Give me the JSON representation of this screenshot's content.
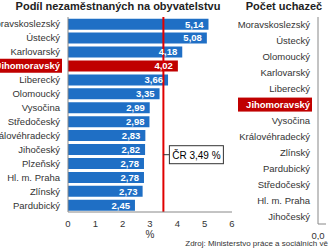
{
  "chart_data": [
    {
      "type": "bar",
      "title": "Podíl nezaměstnaných na obyvatelstvu",
      "orientation": "horizontal",
      "categories": [
        "Moravskoslezský",
        "Ústecký",
        "Karlovarský",
        "Jihomoravský",
        "Liberecký",
        "Olomoucký",
        "Vysočina",
        "Středočeský",
        "Královéhradecký",
        "Jihočeský",
        "Plzeňský",
        "Hl. m. Praha",
        "Zlínský",
        "Pardubický"
      ],
      "values": [
        5.14,
        5.08,
        4.18,
        4.02,
        3.66,
        3.35,
        2.99,
        2.98,
        2.83,
        2.82,
        2.78,
        2.78,
        2.73,
        2.45
      ],
      "value_labels": [
        "5,14",
        "5,08",
        "4,18",
        "4,02",
        "3,66",
        "3,35",
        "2,99",
        "2,98",
        "2,83",
        "2,82",
        "2,78",
        "2,78",
        "2,73",
        "2,45"
      ],
      "colors": [
        "#1f6fc5",
        "#1f6fc5",
        "#1f6fc5",
        "#c00000",
        "#1f6fc5",
        "#1f6fc5",
        "#1f6fc5",
        "#1f6fc5",
        "#1f6fc5",
        "#1f6fc5",
        "#1f6fc5",
        "#1f6fc5",
        "#1f6fc5",
        "#1f6fc5"
      ],
      "data_labels": true,
      "xlim": [
        0,
        6
      ],
      "xticks": [
        0,
        1,
        2,
        3,
        4,
        5,
        6
      ],
      "x_label": "%",
      "reference_line": {
        "value": 3.49,
        "label": "ČR 3,49 %",
        "color": "#e00000"
      }
    },
    {
      "type": "bar",
      "title": "Počet uchazeč",
      "orientation": "horizontal",
      "categories": [
        "Moravskoslezský",
        "Ústecký",
        "Olomoucký",
        "Karlovarský",
        "Liberecký",
        "Jihomoravský",
        "Vysočina",
        "Královéhradecký",
        "Zlínský",
        "Pardubický",
        "Středočeský",
        "Hl. m. Praha",
        "Jihočeský"
      ],
      "values": [
        null,
        null,
        null,
        null,
        null,
        null,
        null,
        null,
        null,
        null,
        null,
        null,
        null
      ],
      "colors": [
        "#1f6fc5",
        "#1f6fc5",
        "#1f6fc5",
        "#1f6fc5",
        "#1f6fc5",
        "#c00000",
        "#1f6fc5",
        "#1f6fc5",
        "#1f6fc5",
        "#1f6fc5",
        "#1f6fc5",
        "#1f6fc5",
        "#1f6fc5"
      ],
      "xlim": [
        0,
        1
      ],
      "xticks": [
        {
          "value": 0,
          "label": "0,0"
        }
      ],
      "source": "Zdroj: Ministerstvo práce a sociálních vě"
    }
  ]
}
